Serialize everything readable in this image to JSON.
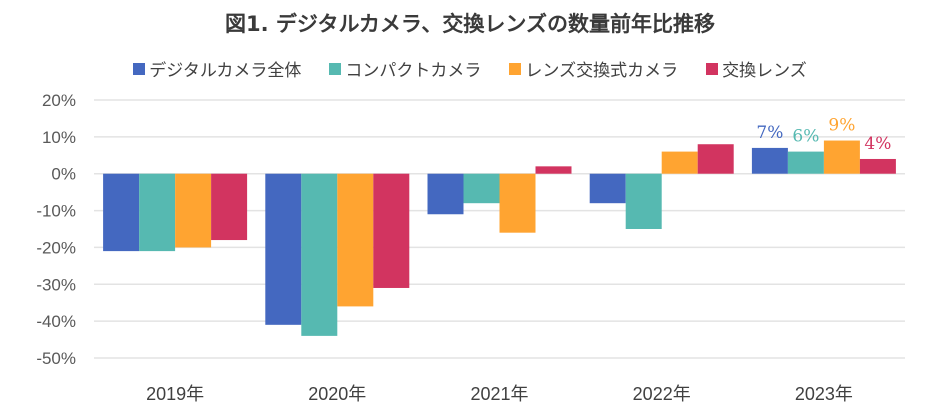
{
  "chart_data": {
    "type": "bar",
    "title": "図1. デジタルカメラ、交換レンズの数量前年比推移",
    "xlabel": "",
    "ylabel": "",
    "ylim": [
      -50,
      20
    ],
    "yticks": [
      "20%",
      "10%",
      "0%",
      "-10%",
      "-20%",
      "-30%",
      "-40%",
      "-50%"
    ],
    "ytick_values": [
      20,
      10,
      0,
      -10,
      -20,
      -30,
      -40,
      -50
    ],
    "grid": true,
    "legend_position": "top",
    "categories": [
      "2019年",
      "2020年",
      "2021年",
      "2022年",
      "2023年"
    ],
    "series": [
      {
        "name": "デジタルカメラ全体",
        "color": "#4468c0",
        "values": [
          -21,
          -41,
          -11,
          -8,
          7
        ],
        "label_last": "7%"
      },
      {
        "name": "コンパクトカメラ",
        "color": "#56b9b1",
        "values": [
          -21,
          -44,
          -8,
          -15,
          6
        ],
        "label_last": "6%"
      },
      {
        "name": "レンズ交換式カメラ",
        "color": "#ffa431",
        "values": [
          -20,
          -36,
          -16,
          6,
          9
        ],
        "label_last": "9%"
      },
      {
        "name": "交換レンズ",
        "color": "#d23460",
        "values": [
          -18,
          -31,
          2,
          8,
          4
        ],
        "label_last": "4%"
      }
    ]
  }
}
